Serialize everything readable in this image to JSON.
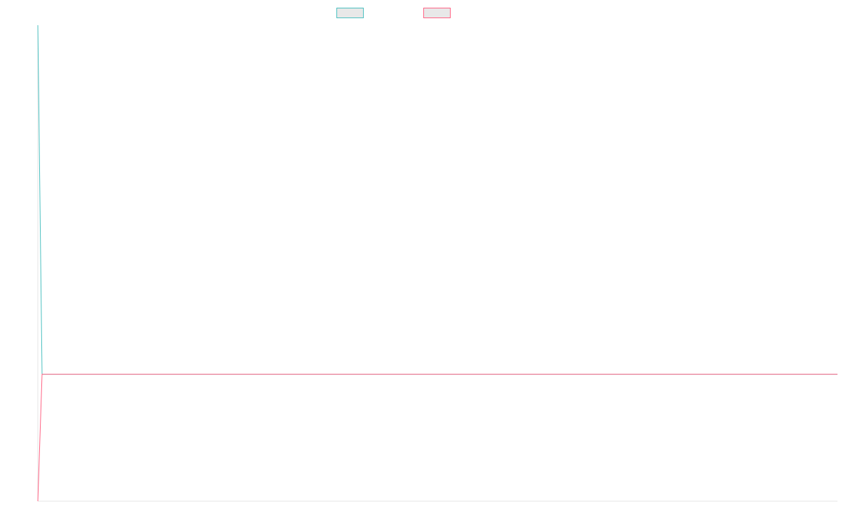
{
  "chart_data": {
    "type": "line",
    "title": "",
    "xlabel": "",
    "ylabel": "",
    "x": [
      0,
      1,
      2,
      3,
      4,
      5,
      6,
      7,
      8,
      9,
      10,
      11,
      12,
      13,
      14,
      15,
      16,
      17,
      18,
      19,
      20,
      21,
      22,
      23,
      24,
      25,
      26,
      27,
      28,
      29,
      30,
      31,
      32,
      33,
      34,
      35,
      36,
      37,
      38,
      39,
      40,
      41,
      42,
      43,
      44,
      45,
      46,
      47,
      48,
      49,
      50,
      51,
      52,
      53,
      54,
      55,
      56,
      57,
      58,
      59,
      60,
      61,
      62,
      63,
      64,
      65,
      66,
      67,
      68,
      69,
      70,
      71,
      72,
      73,
      74,
      75,
      76,
      77,
      78,
      79,
      80,
      81,
      82,
      83,
      84,
      85,
      86,
      87,
      88,
      89,
      90,
      91,
      92,
      93,
      94,
      95,
      96,
      97,
      98,
      99,
      100,
      101,
      102,
      103,
      104,
      105,
      106,
      107,
      108,
      109,
      110,
      111,
      112,
      113,
      114,
      115,
      116,
      117,
      118,
      119,
      120,
      121,
      122,
      123,
      124,
      125,
      126,
      127,
      128,
      129,
      130,
      131,
      132,
      133,
      134,
      135,
      136,
      137,
      138,
      139,
      140,
      141,
      142,
      143,
      144,
      145,
      146,
      147,
      148,
      149,
      150,
      151,
      152,
      153,
      154,
      155,
      156,
      157,
      158,
      159,
      160,
      161,
      162,
      163,
      164,
      165,
      166,
      167,
      168,
      169,
      170,
      171,
      172,
      173,
      174,
      175,
      176,
      177,
      178,
      179,
      180,
      181,
      182,
      183,
      184,
      185,
      186,
      187,
      188,
      189,
      190
    ],
    "xlim": [
      0,
      190
    ],
    "ylim": [
      -1,
      2.75
    ],
    "grid": false,
    "legend": "top-center",
    "series": [
      {
        "name": "",
        "color": "#4bc0c0",
        "values": [
          2.75,
          0,
          0,
          0,
          0,
          0,
          0,
          0,
          0,
          0,
          0,
          0,
          0,
          0,
          0,
          0,
          0,
          0,
          0,
          0,
          0,
          0,
          0,
          0,
          0,
          0,
          0,
          0,
          0,
          0,
          0,
          0,
          0,
          0,
          0,
          0,
          0,
          0,
          0,
          0,
          0,
          0,
          0,
          0,
          0,
          0,
          0,
          0,
          0,
          0,
          0,
          0,
          0,
          0,
          0,
          0,
          0,
          0,
          0,
          0,
          0,
          0,
          0,
          0,
          0,
          0,
          0,
          0,
          0,
          0,
          0,
          0,
          0,
          0,
          0,
          0,
          0,
          0,
          0,
          0,
          0,
          0,
          0,
          0,
          0,
          0,
          0,
          0,
          0,
          0,
          0,
          0,
          0,
          0,
          0,
          0,
          0,
          0,
          0,
          0,
          0,
          0,
          0,
          0,
          0,
          0,
          0,
          0,
          0,
          0,
          0,
          0,
          0,
          0,
          0,
          0,
          0,
          0,
          0,
          0,
          0,
          0,
          0,
          0,
          0,
          0,
          0,
          0,
          0,
          0,
          0,
          0,
          0,
          0,
          0,
          0,
          0,
          0,
          0,
          0,
          0,
          0,
          0,
          0,
          0,
          0,
          0,
          0,
          0,
          0,
          0,
          0,
          0,
          0,
          0,
          0,
          0,
          0,
          0,
          0,
          0,
          0,
          0,
          0,
          0,
          0,
          0,
          0,
          0,
          0,
          0,
          0,
          0,
          0,
          0,
          0,
          0,
          0,
          0,
          0,
          0,
          0,
          0,
          0,
          0,
          0,
          0,
          0,
          0,
          0,
          0
        ]
      },
      {
        "name": "",
        "color": "#ff6384",
        "values": [
          -1,
          0,
          0,
          0,
          0,
          0,
          0,
          0,
          0,
          0,
          0,
          0,
          0,
          0,
          0,
          0,
          0,
          0,
          0,
          0,
          0,
          0,
          0,
          0,
          0,
          0,
          0,
          0,
          0,
          0,
          0,
          0,
          0,
          0,
          0,
          0,
          0,
          0,
          0,
          0,
          0,
          0,
          0,
          0,
          0,
          0,
          0,
          0,
          0,
          0,
          0,
          0,
          0,
          0,
          0,
          0,
          0,
          0,
          0,
          0,
          0,
          0,
          0,
          0,
          0,
          0,
          0,
          0,
          0,
          0,
          0,
          0,
          0,
          0,
          0,
          0,
          0,
          0,
          0,
          0,
          0,
          0,
          0,
          0,
          0,
          0,
          0,
          0,
          0,
          0,
          0,
          0,
          0,
          0,
          0,
          0,
          0,
          0,
          0,
          0,
          0,
          0,
          0,
          0,
          0,
          0,
          0,
          0,
          0,
          0,
          0,
          0,
          0,
          0,
          0,
          0,
          0,
          0,
          0,
          0,
          0,
          0,
          0,
          0,
          0,
          0,
          0,
          0,
          0,
          0,
          0,
          0,
          0,
          0,
          0,
          0,
          0,
          0,
          0,
          0,
          0,
          0,
          0,
          0,
          0,
          0,
          0,
          0,
          0,
          0,
          0,
          0,
          0,
          0,
          0,
          0,
          0,
          0,
          0,
          0,
          0,
          0,
          0,
          0,
          0,
          0,
          0,
          0,
          0,
          0,
          0,
          0,
          0,
          0,
          0,
          0,
          0,
          0,
          0,
          0,
          0,
          0,
          0,
          0,
          0,
          0,
          0,
          0,
          0,
          0,
          0
        ]
      }
    ]
  }
}
